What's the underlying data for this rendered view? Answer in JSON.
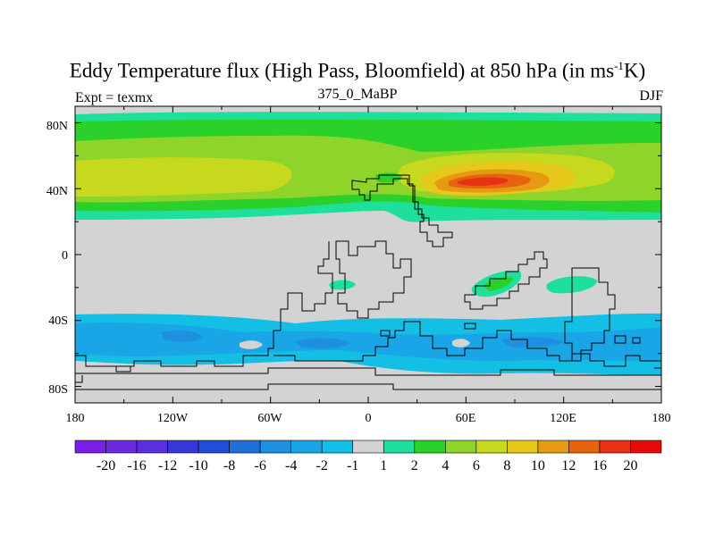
{
  "title": {
    "main": "Eddy Temperature flux (High Pass, Bloomfield) at 850 hPa (in ms",
    "sup": "-1",
    "tail": "K)"
  },
  "left_label": "Expt = texmx",
  "center_label": "375_0_MaBP",
  "right_label": "DJF",
  "axes": {
    "x_ticks": [
      "180",
      "120W",
      "60W",
      "0",
      "60E",
      "120E",
      "180"
    ],
    "y_ticks": [
      "80N",
      "40N",
      "0",
      "40S",
      "80S"
    ]
  },
  "colorbar": {
    "labels": [
      "-20",
      "-16",
      "-12",
      "-10",
      "-8",
      "-6",
      "-4",
      "-2",
      "-1",
      "1",
      "2",
      "4",
      "6",
      "8",
      "10",
      "12",
      "16",
      "20"
    ],
    "colors": [
      "#7a1ee6",
      "#6a28e0",
      "#5a2fe0",
      "#3636d9",
      "#1f4fd6",
      "#1f6fd6",
      "#1f8fe0",
      "#1aa6e6",
      "#14bfe6",
      "#d3d3d3",
      "#1ee09a",
      "#2ad12a",
      "#8ed42a",
      "#c6d91e",
      "#e6c81a",
      "#e69a14",
      "#e6640f",
      "#e63214",
      "#e60a0a"
    ]
  },
  "colors": {
    "land_mask_gray": "#d3d3d3",
    "coastline": "#000000"
  }
}
